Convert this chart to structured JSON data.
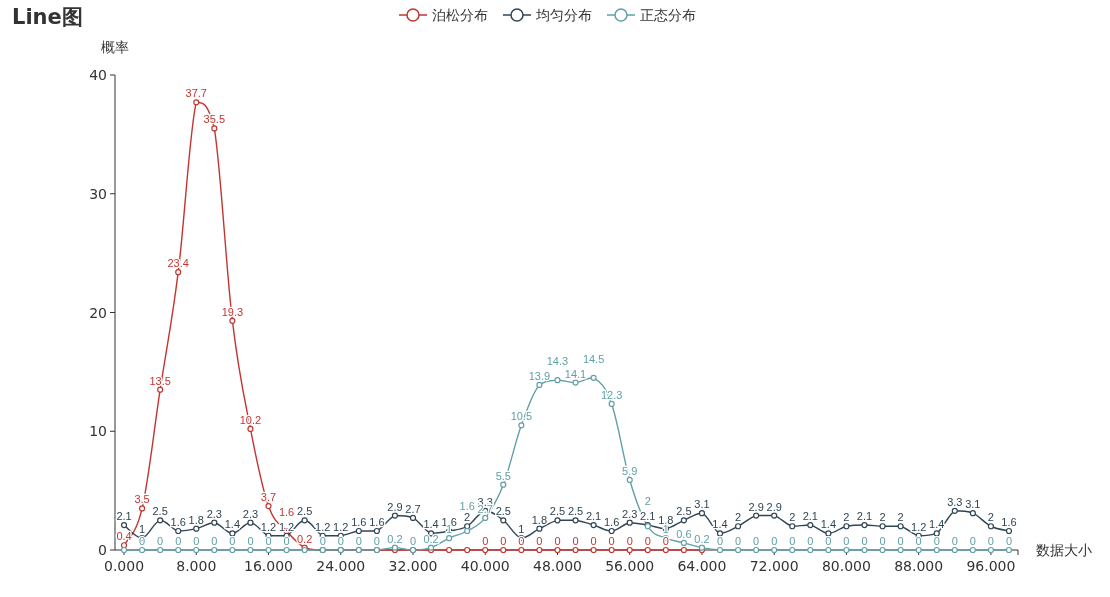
{
  "chart_data": {
    "type": "line",
    "title": "Line图",
    "ylabel": "概率",
    "xlabel": "数据大小",
    "categories": [
      "0.000",
      null,
      null,
      null,
      "8.000",
      null,
      null,
      null,
      "16.000",
      null,
      null,
      null,
      "24.000",
      null,
      null,
      null,
      "32.000",
      null,
      null,
      null,
      "40.000",
      null,
      null,
      null,
      "48.000",
      null,
      null,
      null,
      "56.000",
      null,
      null,
      null,
      "64.000",
      null,
      null,
      null,
      "72.000",
      null,
      null,
      null,
      "80.000",
      null,
      null,
      null,
      "88.000",
      null,
      null,
      null,
      "96.000",
      null
    ],
    "series": [
      {
        "name": "泊松分布",
        "color": "#c23531",
        "values": [
          0.4,
          3.5,
          13.5,
          23.4,
          37.7,
          35.5,
          19.3,
          10.2,
          3.7,
          1.6,
          0.2,
          0,
          0,
          0,
          0,
          0,
          0,
          0,
          0,
          0,
          0,
          0,
          0,
          0,
          0,
          0,
          0,
          0,
          0,
          0,
          0,
          0,
          0,
          null,
          null,
          null,
          null,
          null,
          null,
          null,
          null,
          null,
          null,
          null,
          null,
          null,
          null,
          null,
          null,
          null
        ],
        "value_labels": [
          "0.4",
          "3.5",
          "13.5",
          "23.4",
          "37.7",
          "35.5",
          "19.3",
          "10.2",
          "3.7",
          "1.6",
          "0.2",
          null,
          null,
          null,
          null,
          null,
          null,
          null,
          null,
          null,
          "0",
          "0",
          "0",
          "0",
          "0",
          "0",
          "0",
          "0",
          "0",
          "0",
          "0",
          null,
          null,
          null,
          null,
          null,
          null,
          null,
          null,
          null,
          null,
          null,
          null,
          null,
          null,
          null,
          null,
          null,
          null,
          null
        ]
      },
      {
        "name": "均匀分布",
        "color": "#2f4554",
        "values": [
          2.1,
          1,
          2.5,
          1.6,
          1.8,
          2.3,
          1.4,
          2.3,
          1.2,
          1.2,
          2.5,
          1.2,
          1.2,
          1.6,
          1.6,
          2.9,
          2.7,
          1.4,
          1.6,
          2,
          3.3,
          2.5,
          1,
          1.8,
          2.5,
          2.5,
          2.1,
          1.6,
          2.3,
          2.1,
          1.8,
          2.5,
          3.1,
          1.4,
          2,
          2.9,
          2.9,
          2,
          2.1,
          1.4,
          2,
          2.1,
          2,
          2,
          1.2,
          1.4,
          3.3,
          3.1,
          2,
          1.6
        ],
        "value_labels": [
          "2.1",
          "1",
          "2.5",
          "1.6",
          "1.8",
          "2.3",
          "1.4",
          "2.3",
          "1.2",
          "1.2",
          "2.5",
          "1.2",
          "1.2",
          "1.6",
          "1.6",
          "2.9",
          "2.7",
          "1.4",
          "1.6",
          "2",
          "3.3",
          "2.5",
          "1",
          "1.8",
          "2.5",
          "2.5",
          "2.1",
          "1.6",
          "2.3",
          "2.1",
          "1.8",
          "2.5",
          "3.1",
          "1.4",
          "2",
          "2.9",
          "2.9",
          "2",
          "2.1",
          "1.4",
          "2",
          "2.1",
          "2",
          "2",
          "1.2",
          "1.4",
          "3.3",
          "3.1",
          "2",
          "1.6"
        ]
      },
      {
        "name": "正态分布",
        "color": "#61a0a8",
        "values": [
          0,
          0,
          0,
          0,
          0,
          0,
          0,
          0,
          0,
          0,
          0,
          0,
          0,
          0,
          0,
          0.2,
          0,
          0.2,
          1,
          1.6,
          2.7,
          5.5,
          10.5,
          13.9,
          14.3,
          14.1,
          14.5,
          12.3,
          5.9,
          2,
          1,
          0.6,
          0.2,
          0,
          0,
          0,
          0,
          0,
          0,
          0,
          0,
          0,
          0,
          0,
          0,
          0,
          0,
          0,
          0,
          0
        ],
        "value_labels": [
          null,
          "0",
          "0",
          "0",
          "0",
          "0",
          "0",
          "0",
          "0",
          "0",
          null,
          "0",
          "0",
          "0",
          "0",
          "0.2",
          "0",
          "0.2",
          "1",
          "1.6",
          "2.7",
          "5.5",
          "10.5",
          "13.9",
          "14.3",
          "14.1",
          "14.5",
          "12.3",
          "5.9",
          "2",
          "1",
          "0.6",
          "0.2",
          "0",
          "0",
          "0",
          "0",
          "0",
          "0",
          "0",
          "0",
          "0",
          "0",
          "0",
          "0",
          "0",
          "0",
          "0",
          "0",
          "0"
        ]
      }
    ],
    "ylim": [
      0,
      40
    ],
    "yticks": [
      0,
      10,
      20,
      30,
      40
    ],
    "grid": false,
    "legend": "top",
    "marker": "circle",
    "line_style": "solid"
  }
}
